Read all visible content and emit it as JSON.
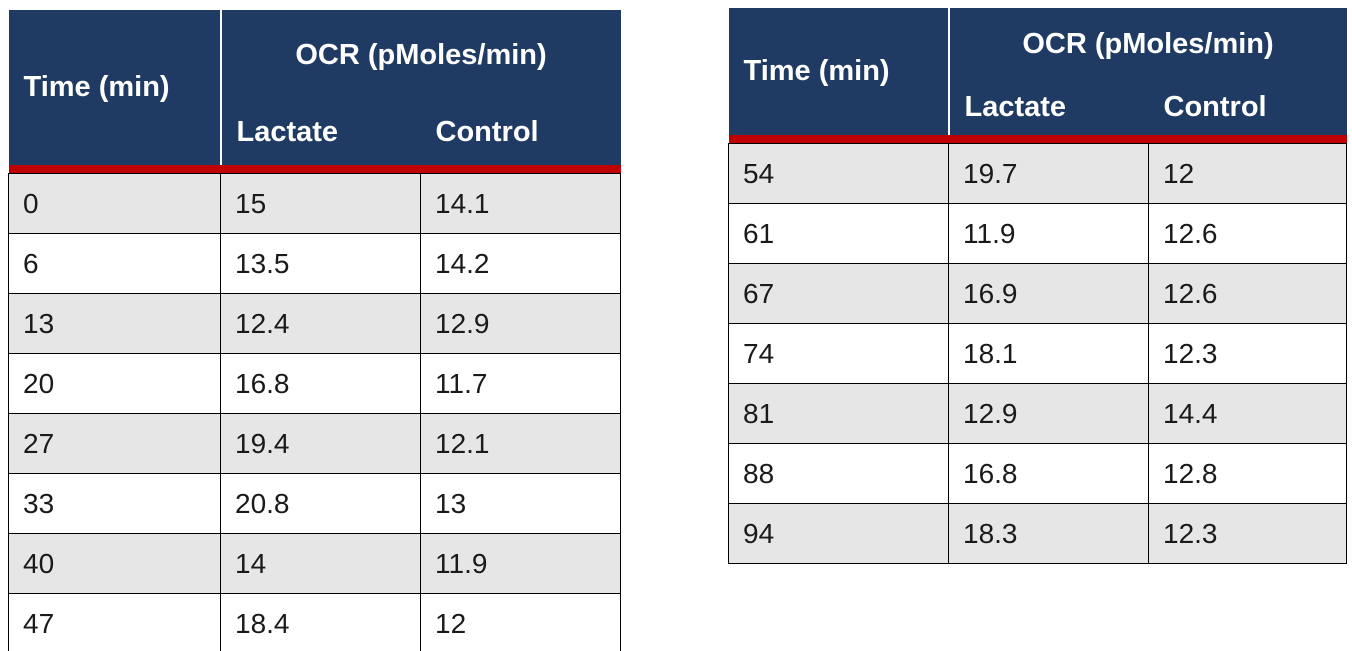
{
  "colors": {
    "header_bg": "#1F3A63",
    "header_text": "#FFFFFF",
    "accent_stripe": "#C00000",
    "row_alt_bg": "#E6E6E6",
    "row_bg": "#FFFFFF",
    "grid_border": "#000000",
    "body_text": "#1A1A1A"
  },
  "tables": [
    {
      "header": {
        "time": "Time (min)",
        "group": "OCR (pMoles/min)",
        "sub": [
          "Lactate",
          "Control"
        ]
      },
      "rows": [
        [
          "0",
          "15",
          "14.1"
        ],
        [
          "6",
          "13.5",
          "14.2"
        ],
        [
          "13",
          "12.4",
          "12.9"
        ],
        [
          "20",
          "16.8",
          "11.7"
        ],
        [
          "27",
          "19.4",
          "12.1"
        ],
        [
          "33",
          "20.8",
          "13"
        ],
        [
          "40",
          "14",
          "11.9"
        ],
        [
          "47",
          "18.4",
          "12"
        ]
      ]
    },
    {
      "header": {
        "time": "Time (min)",
        "group": "OCR (pMoles/min)",
        "sub": [
          "Lactate",
          "Control"
        ]
      },
      "rows": [
        [
          "54",
          "19.7",
          "12"
        ],
        [
          "61",
          "11.9",
          "12.6"
        ],
        [
          "67",
          "16.9",
          "12.6"
        ],
        [
          "74",
          "18.1",
          "12.3"
        ],
        [
          "81",
          "12.9",
          "14.4"
        ],
        [
          "88",
          "16.8",
          "12.8"
        ],
        [
          "94",
          "18.3",
          "12.3"
        ]
      ]
    }
  ],
  "chart_data": {
    "type": "table",
    "xlabel": "Time (min)",
    "ylabel": "OCR (pMoles/min)",
    "x": [
      0,
      6,
      13,
      20,
      27,
      33,
      40,
      47,
      54,
      61,
      67,
      74,
      81,
      88,
      94
    ],
    "series": [
      {
        "name": "Lactate",
        "values": [
          15,
          13.5,
          12.4,
          16.8,
          19.4,
          20.8,
          14,
          18.4,
          19.7,
          11.9,
          16.9,
          18.1,
          12.9,
          16.8,
          18.3
        ]
      },
      {
        "name": "Control",
        "values": [
          14.1,
          14.2,
          12.9,
          11.7,
          12.1,
          13,
          11.9,
          12,
          12,
          12.6,
          12.6,
          12.3,
          14.4,
          12.8,
          12.3
        ]
      }
    ]
  }
}
